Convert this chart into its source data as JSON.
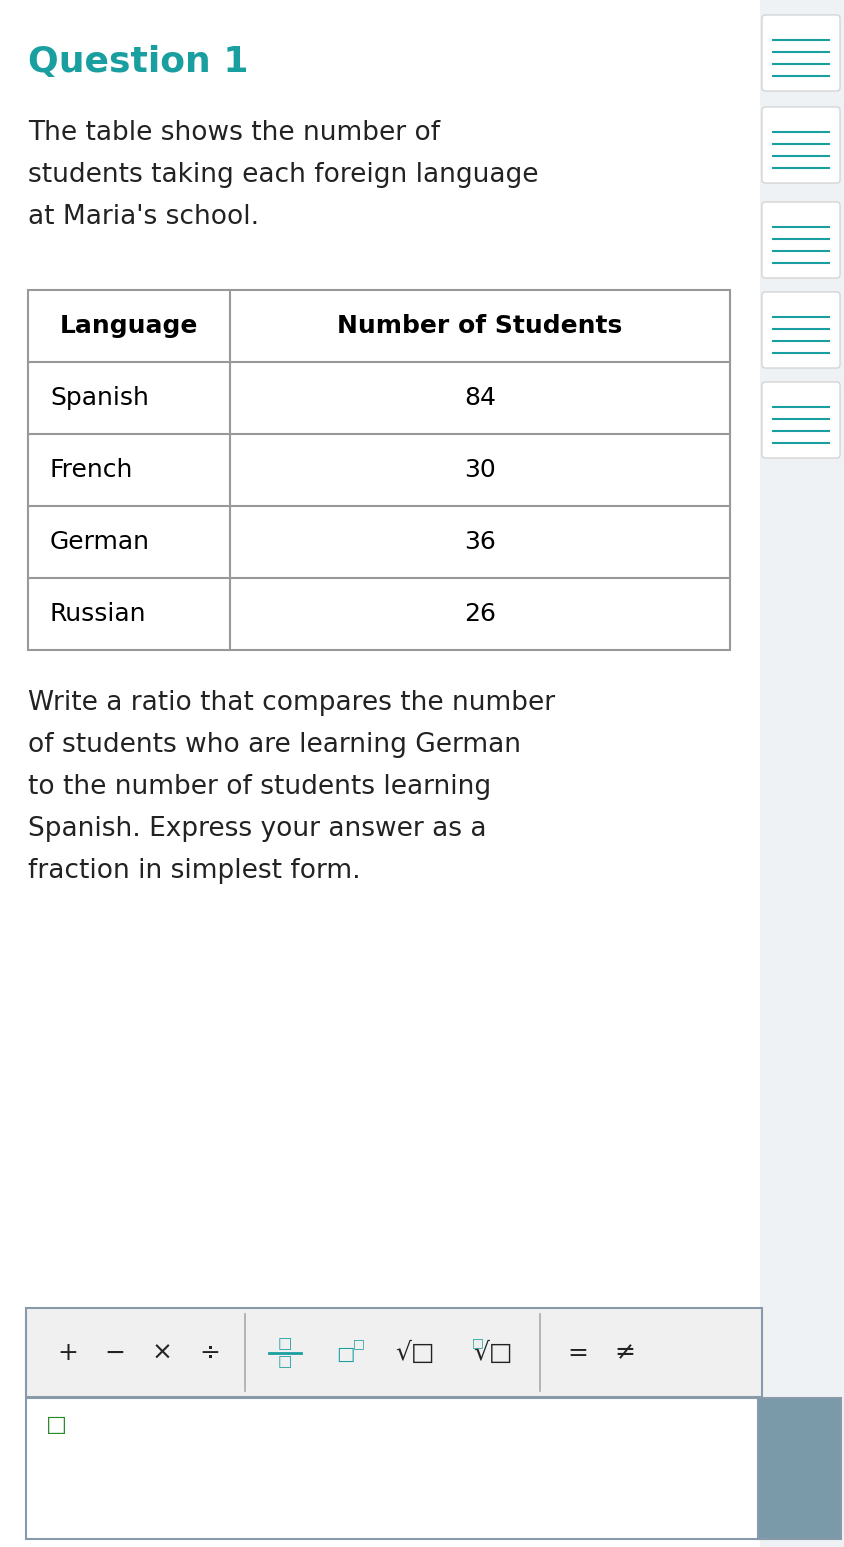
{
  "title": "Question 1",
  "title_color": "#1a9fa0",
  "title_fontsize": 26,
  "body_text1_lines": [
    "The table shows the number of",
    "students taking each foreign language",
    "at Maria's school."
  ],
  "body_text1_fontsize": 19,
  "body_text1_color": "#222222",
  "table_headers": [
    "Language",
    "Number of Students"
  ],
  "table_rows": [
    [
      "Spanish",
      "84"
    ],
    [
      "French",
      "30"
    ],
    [
      "German",
      "36"
    ],
    [
      "Russian",
      "26"
    ]
  ],
  "table_header_fontsize": 18,
  "table_data_fontsize": 18,
  "table_border_color": "#999999",
  "body_text2_lines": [
    "Write a ratio that compares the number",
    "of students who are learning German",
    "to the number of students learning",
    "Spanish. Express your answer as a",
    "fraction in simplest form."
  ],
  "body_text2_fontsize": 19,
  "body_text2_color": "#222222",
  "teal_color": "#1a9fa0",
  "dark_gray": "#222222",
  "toolbar_bg": "#f0f0f0",
  "toolbar_border": "#8899aa",
  "answer_border": "#8899aa",
  "sidebar_gray": "#7a9aaa",
  "sidebar_bg": "#eef2f5",
  "background_color": "#ffffff",
  "fig_width": 8.44,
  "fig_height": 15.47
}
